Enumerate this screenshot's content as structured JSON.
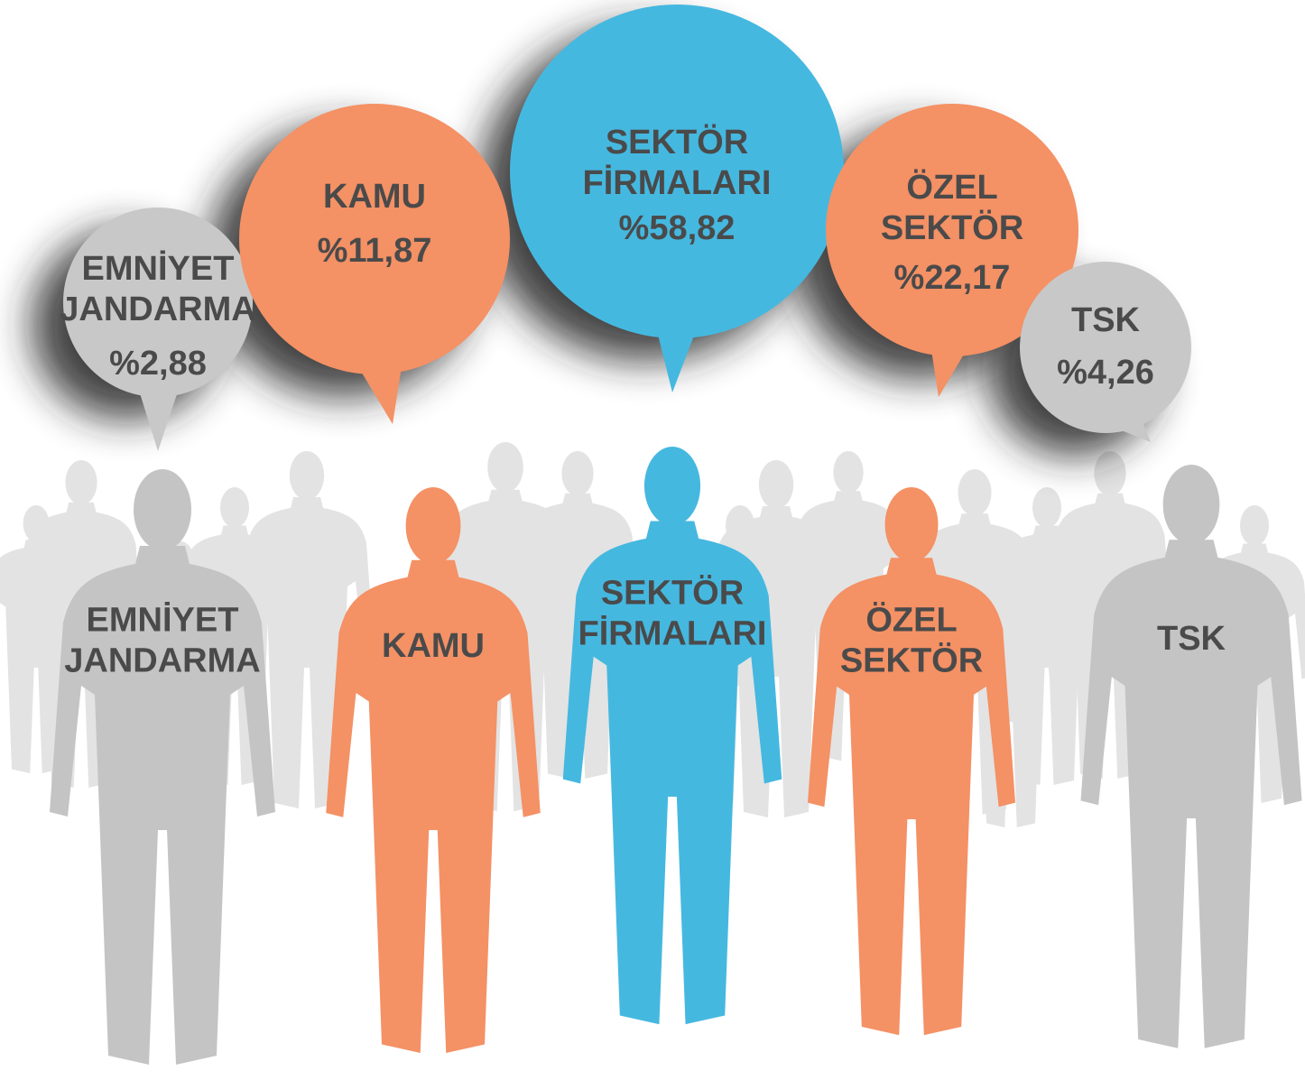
{
  "groups": [
    {
      "label": [
        "EMNİYET",
        "JANDARMA"
      ],
      "value": "%2,88"
    },
    {
      "label": [
        "KAMU"
      ],
      "value": "%11,87"
    },
    {
      "label": [
        "SEKTÖR",
        "FİRMALARI"
      ],
      "value": "%58,82"
    },
    {
      "label": [
        "ÖZEL",
        "SEKTÖR"
      ],
      "value": "%22,17"
    },
    {
      "label": [
        "TSK"
      ],
      "value": "%4,26"
    }
  ]
}
